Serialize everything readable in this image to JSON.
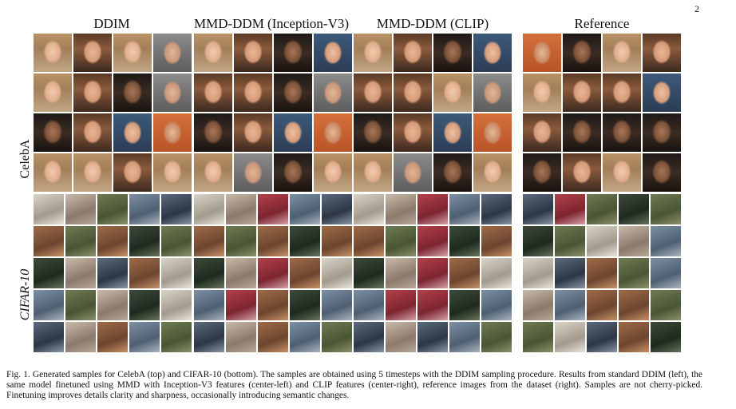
{
  "page_number": "2",
  "columns": {
    "ddim": "DDIM",
    "mmd_inception": "MMD-DDM (Inception-V3)",
    "mmd_clip": "MMD-DDM (CLIP)",
    "reference": "Reference"
  },
  "rows": {
    "celeba": "CelebA",
    "cifar": "CIFAR-10"
  },
  "caption": "Fig. 1.   Generated samples for CelebA (top) and CIFAR-10 (bottom). The samples are obtained using 5 timesteps with the DDIM sampling procedure. Results from standard DDIM (left), the same model finetuned using MMD with Inception-V3 features (center-left) and CLIP features (center-right), reference images from the dataset (right). Samples are not cherry-picked. Finetuning improves details clarity and sharpness, occasionally introducing semantic changes."
}
